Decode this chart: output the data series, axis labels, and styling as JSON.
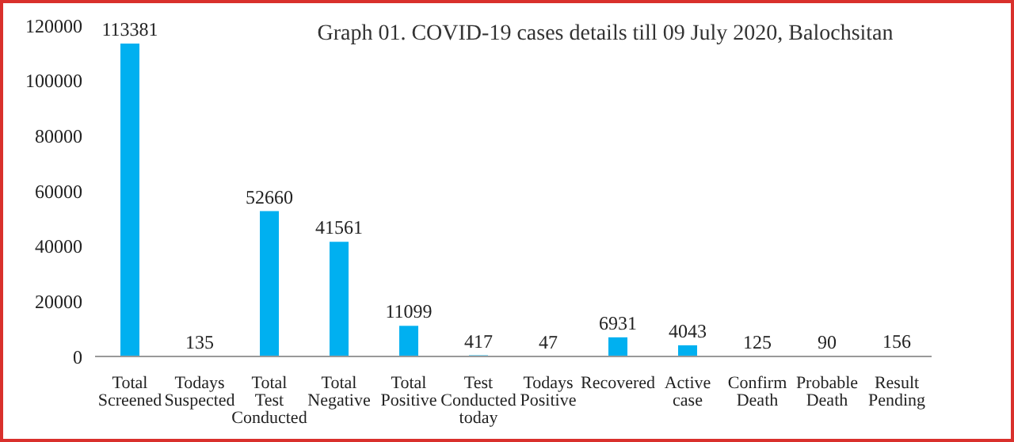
{
  "chart_data": {
    "type": "bar",
    "title": "Graph 01. COVID-19 cases details till 09 July 2020, Balochsitan",
    "categories": [
      "Total Screened",
      "Todays Suspected",
      "Total Test Conducted",
      "Total Negative",
      "Total Positive",
      "Test Conducted today",
      "Todays Positive",
      "Recovered",
      "Active case",
      "Confirm Death",
      "Probable Death",
      "Result Pending"
    ],
    "values": [
      113381,
      135,
      52660,
      41561,
      11099,
      417,
      47,
      6931,
      4043,
      125,
      90,
      156
    ],
    "color": "#00b0f0",
    "ylim": [
      0,
      120000
    ],
    "yticks": [
      0,
      20000,
      40000,
      60000,
      80000,
      100000,
      120000
    ],
    "grid": false,
    "data_labels": true
  }
}
